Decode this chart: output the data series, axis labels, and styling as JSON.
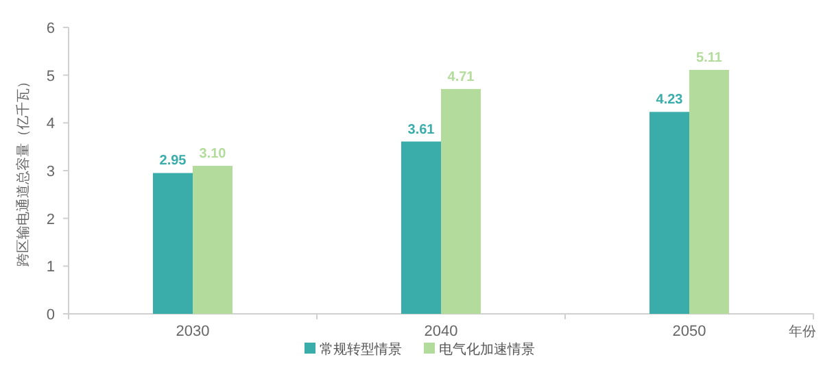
{
  "chart_data": {
    "type": "bar",
    "ylabel": "跨区输电通道总容量（亿千瓦）",
    "xlabel": "年份",
    "categories": [
      "2030",
      "2040",
      "2050"
    ],
    "series": [
      {
        "name": "常规转型情景",
        "color": "#3aadaa",
        "values": [
          2.95,
          3.61,
          4.23
        ]
      },
      {
        "name": "电气化加速情景",
        "color": "#b3dc9c",
        "values": [
          3.1,
          4.71,
          5.11
        ]
      }
    ],
    "value_labels": [
      [
        "2.95",
        "3.61",
        "4.23"
      ],
      [
        "3.10",
        "4.71",
        "5.11"
      ]
    ],
    "ylim": [
      0,
      6
    ],
    "yticks": [
      0,
      1,
      2,
      3,
      4,
      5,
      6
    ],
    "legend": "bottom"
  }
}
